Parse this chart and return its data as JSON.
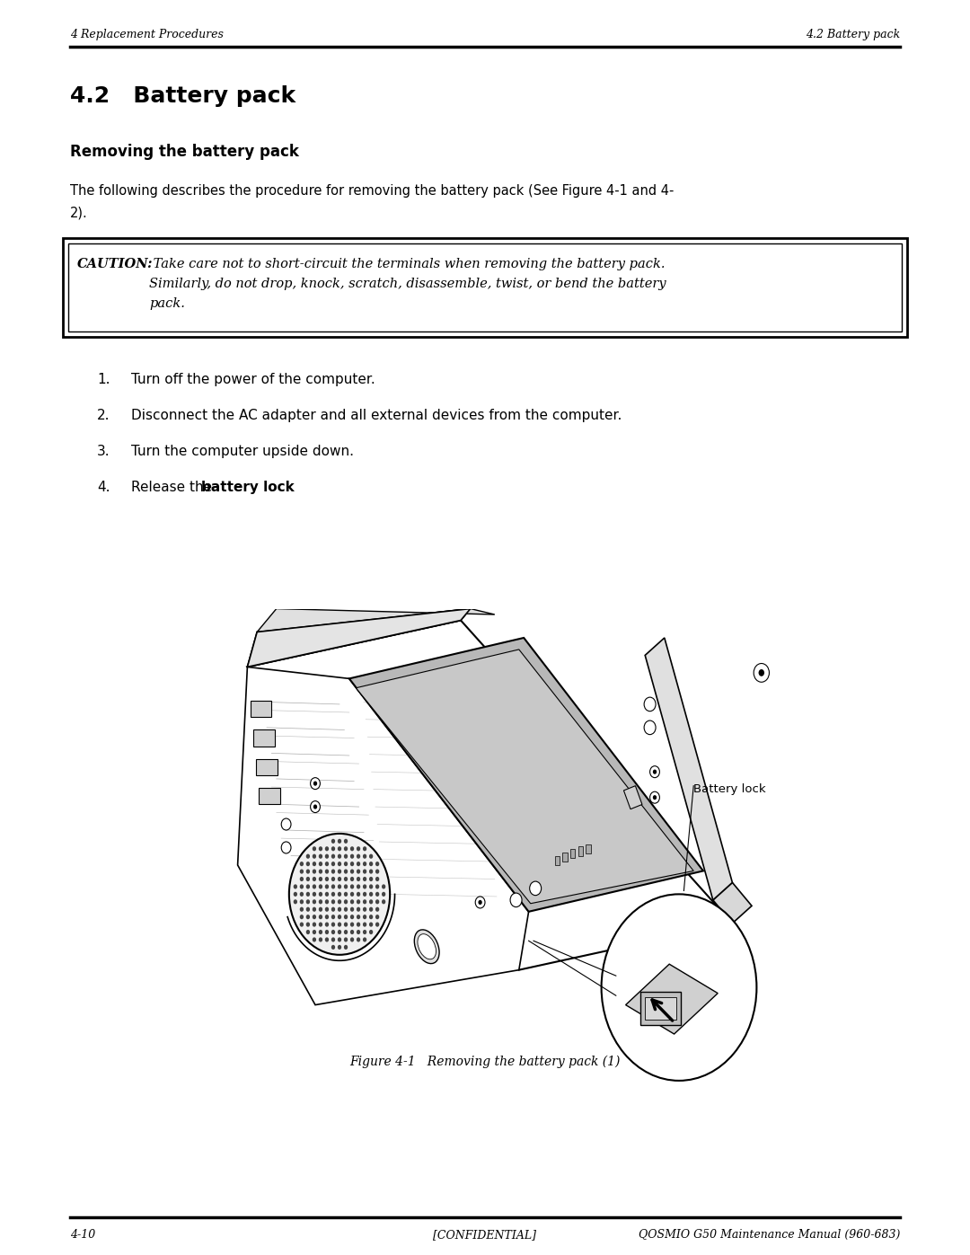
{
  "page_width": 10.8,
  "page_height": 13.97,
  "bg_color": "#ffffff",
  "header_left": "4 Replacement Procedures",
  "header_right": "4.2 Battery pack",
  "footer_left": "4-10",
  "footer_center": "[CONFIDENTIAL]",
  "footer_right": "QOSMIO G50 Maintenance Manual (960-683)",
  "section_title": "4.2   Battery pack",
  "subsection_title": "Removing the battery pack",
  "intro_line1": "The following describes the procedure for removing the battery pack (See Figure 4-1 and 4-",
  "intro_line2": "2).",
  "caution_label": "CAUTION:",
  "caution_text1": " Take care not to short-circuit the terminals when removing the battery pack.",
  "caution_text2": "Similarly, do not drop, knock, scratch, disassemble, twist, or bend the battery",
  "caution_text3": "pack.",
  "step1": "Turn off the power of the computer.",
  "step2": "Disconnect the AC adapter and all external devices from the computer.",
  "step3": "Turn the computer upside down.",
  "step4a": "Release the ",
  "step4b": "battery lock",
  "step4c": ".",
  "figure_caption": "Figure 4-1   Removing the battery pack (1)",
  "battery_lock_label": "Battery lock"
}
